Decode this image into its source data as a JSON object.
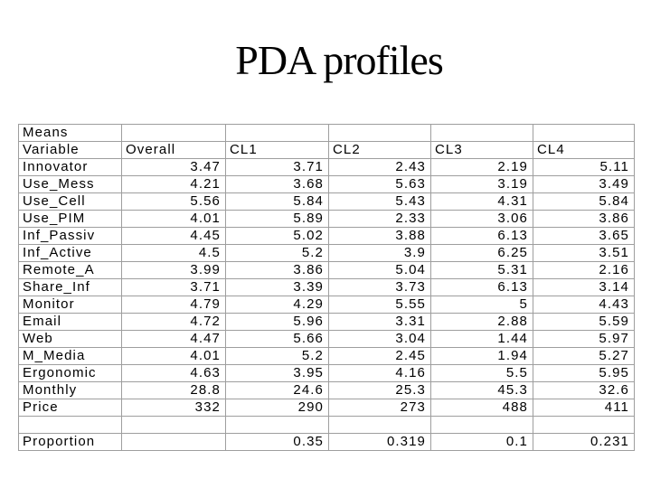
{
  "page": {
    "title": "PDA profiles",
    "background_color": "#ffffff",
    "text_color": "#000000",
    "gridline_color": "#9e9e9e"
  },
  "table": {
    "corner_label": "Means",
    "columns": [
      "Variable",
      "Overall",
      "CL1",
      "CL2",
      "CL3",
      "CL4"
    ],
    "rows": [
      [
        "Means",
        "",
        "",
        "",
        "",
        ""
      ],
      [
        "Variable",
        "Overall",
        "CL1",
        "CL2",
        "CL3",
        "CL4"
      ],
      [
        "Innovator",
        "3.47",
        "3.71",
        "2.43",
        "2.19",
        "5.11"
      ],
      [
        "Use_Mess",
        "4.21",
        "3.68",
        "5.63",
        "3.19",
        "3.49"
      ],
      [
        "Use_Cell",
        "5.56",
        "5.84",
        "5.43",
        "4.31",
        "5.84"
      ],
      [
        "Use_PIM",
        "4.01",
        "5.89",
        "2.33",
        "3.06",
        "3.86"
      ],
      [
        "Inf_Passiv",
        "4.45",
        "5.02",
        "3.88",
        "6.13",
        "3.65"
      ],
      [
        "Inf_Active",
        "4.5",
        "5.2",
        "3.9",
        "6.25",
        "3.51"
      ],
      [
        "Remote_A",
        "3.99",
        "3.86",
        "5.04",
        "5.31",
        "2.16"
      ],
      [
        "Share_Inf",
        "3.71",
        "3.39",
        "3.73",
        "6.13",
        "3.14"
      ],
      [
        "Monitor",
        "4.79",
        "4.29",
        "5.55",
        "5",
        "4.43"
      ],
      [
        "Email",
        "4.72",
        "5.96",
        "3.31",
        "2.88",
        "5.59"
      ],
      [
        "Web",
        "4.47",
        "5.66",
        "3.04",
        "1.44",
        "5.97"
      ],
      [
        "M_Media",
        "4.01",
        "5.2",
        "2.45",
        "1.94",
        "5.27"
      ],
      [
        "Ergonomic",
        "4.63",
        "3.95",
        "4.16",
        "5.5",
        "5.95"
      ],
      [
        "Monthly",
        "28.8",
        "24.6",
        "25.3",
        "45.3",
        "32.6"
      ],
      [
        "Price",
        "332",
        "290",
        "273",
        "488",
        "411"
      ],
      [
        "",
        "",
        "",
        "",
        "",
        ""
      ],
      [
        "Proportion",
        "",
        "0.35",
        "0.319",
        "0.1",
        "0.231"
      ]
    ]
  }
}
